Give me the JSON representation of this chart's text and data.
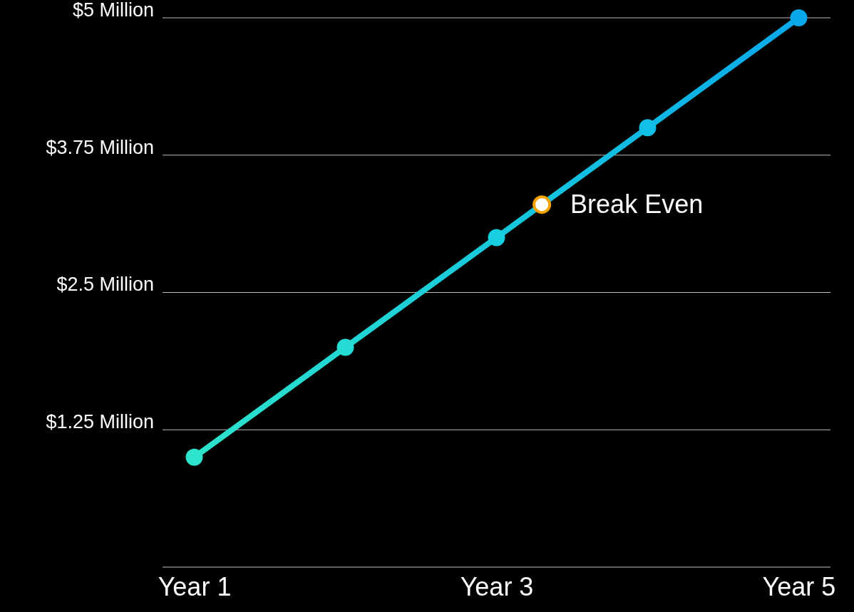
{
  "chart_data": {
    "type": "line",
    "categories": [
      "Year 1",
      null,
      "Year 3",
      null,
      "Year 5"
    ],
    "ylim": [
      0,
      5
    ],
    "yticks": [
      {
        "value": 0,
        "label": null
      },
      {
        "value": 1.25,
        "label": "$1.25 Million"
      },
      {
        "value": 2.5,
        "label": "$2.5 Million"
      },
      {
        "value": 3.75,
        "label": "$3.75 Million"
      },
      {
        "value": 5,
        "label": "$5 Million"
      }
    ],
    "grid": "y",
    "marker": "circle",
    "line_style": "solid",
    "series": [
      {
        "values": [
          1.0,
          2.0,
          3.0,
          4.0,
          5.0
        ],
        "color": "#17c9dc",
        "colors": [
          "#2de3cb",
          "#24dcd3",
          "#17cfe0",
          "#12bfe6",
          "#0aa8ea"
        ]
      }
    ],
    "annotations": [
      "Break Even"
    ]
  }
}
